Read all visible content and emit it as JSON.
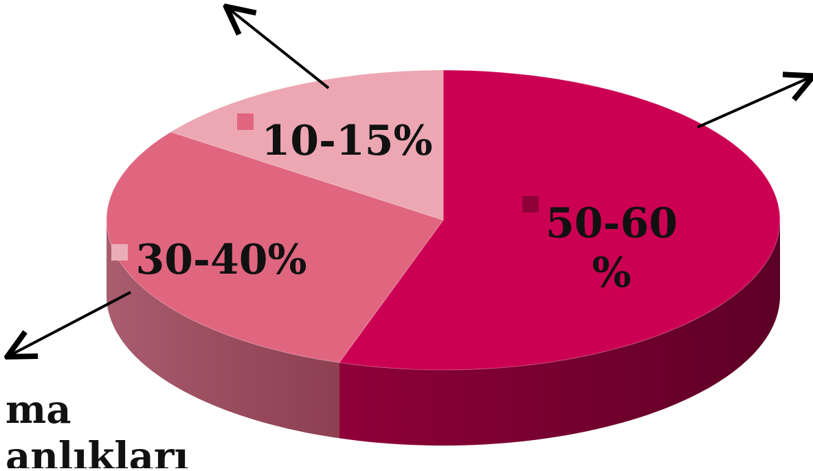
{
  "chart_data": {
    "type": "pie",
    "style": "3d",
    "slices": [
      {
        "label": "50-60 %",
        "label_lines": [
          "50-60",
          "%"
        ],
        "value": 55,
        "color": "#CC0052"
      },
      {
        "label": "30-40%",
        "label_lines": [
          "30-40%"
        ],
        "value": 30,
        "color": "#E06680"
      },
      {
        "label": "10-15%",
        "label_lines": [
          "10-15%"
        ],
        "value": 15,
        "color": "#ECA7B2"
      }
    ],
    "annotation_lines": [
      "ma",
      "anlıkları"
    ],
    "legend_markers": true
  }
}
